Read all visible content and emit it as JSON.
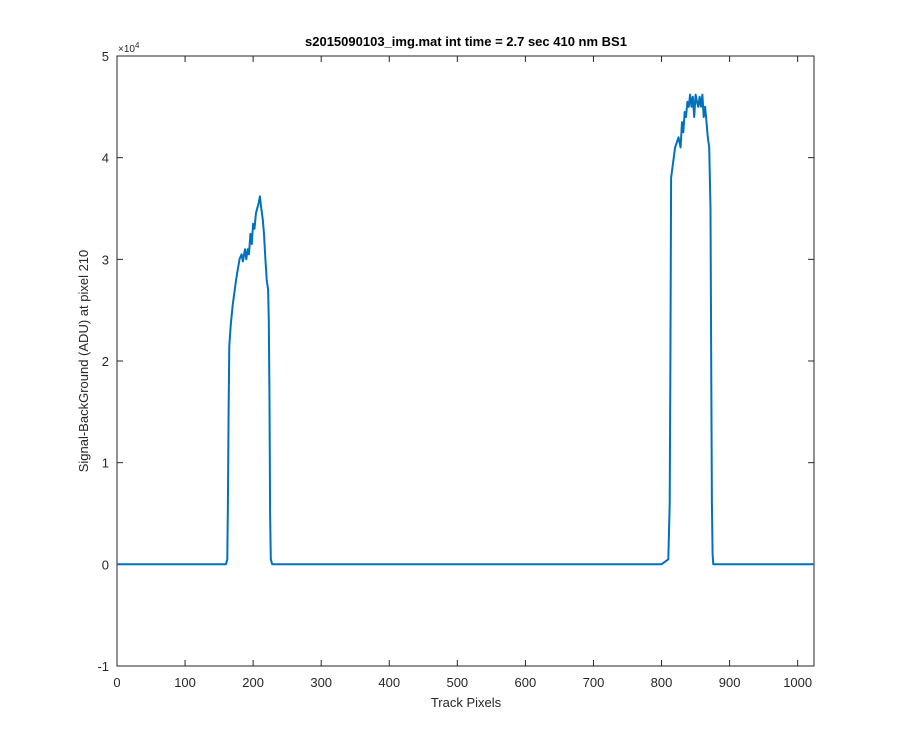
{
  "chart_data": {
    "type": "line",
    "title": "s2015090103_img.mat int time = 2.7 sec  410 nm BS1",
    "xlabel": "Track Pixels",
    "ylabel": "Signal-BackGround (ADU) at pixel 210",
    "y_exponent_label": "×10",
    "y_exponent_power": "4",
    "xlim": [
      0,
      1024
    ],
    "ylim": [
      -1,
      5
    ],
    "y_scale_note": "values in units of 10^4 ADU",
    "x_ticks": [
      0,
      100,
      200,
      300,
      400,
      500,
      600,
      700,
      800,
      900,
      1000
    ],
    "x_tick_labels": [
      "0",
      "100",
      "200",
      "300",
      "400",
      "500",
      "600",
      "700",
      "800",
      "900",
      "1000"
    ],
    "y_ticks": [
      -1,
      0,
      1,
      2,
      3,
      4,
      5
    ],
    "y_tick_labels": [
      "-1",
      "0",
      "1",
      "2",
      "3",
      "4",
      "5"
    ],
    "grid": false,
    "box": true,
    "colors": {
      "line": "#0072BD",
      "axis": "#262626",
      "background": "#ffffff"
    },
    "series": [
      {
        "x": [
          0,
          160,
          162,
          163,
          164,
          165,
          167,
          170,
          175,
          180,
          183,
          185,
          188,
          190,
          192,
          194,
          196,
          198,
          200,
          202,
          204,
          206,
          208,
          210,
          212,
          214,
          216,
          218,
          220,
          222,
          223,
          224,
          225,
          226,
          228,
          230,
          400,
          600,
          800,
          810,
          812,
          813,
          814,
          816,
          820,
          825,
          828,
          830,
          832,
          834,
          836,
          838,
          840,
          842,
          844,
          846,
          848,
          850,
          852,
          854,
          856,
          858,
          860,
          862,
          864,
          866,
          868,
          870,
          872,
          873,
          874,
          875,
          876,
          878,
          1024
        ],
        "y": [
          0,
          0,
          0.05,
          0.6,
          1.5,
          2.15,
          2.35,
          2.55,
          2.8,
          3.0,
          3.05,
          2.98,
          3.1,
          3.0,
          3.1,
          3.05,
          3.25,
          3.15,
          3.35,
          3.3,
          3.45,
          3.5,
          3.55,
          3.62,
          3.5,
          3.4,
          3.25,
          3.0,
          2.8,
          2.7,
          2.4,
          1.6,
          0.5,
          0.05,
          0,
          0,
          0,
          0,
          0,
          0.05,
          0.6,
          2.0,
          3.8,
          3.9,
          4.1,
          4.2,
          4.1,
          4.35,
          4.25,
          4.45,
          4.4,
          4.55,
          4.5,
          4.62,
          4.5,
          4.6,
          4.4,
          4.62,
          4.55,
          4.5,
          4.6,
          4.5,
          4.62,
          4.4,
          4.5,
          4.35,
          4.2,
          4.1,
          3.5,
          2.0,
          0.6,
          0.1,
          0,
          0,
          0
        ]
      }
    ]
  }
}
